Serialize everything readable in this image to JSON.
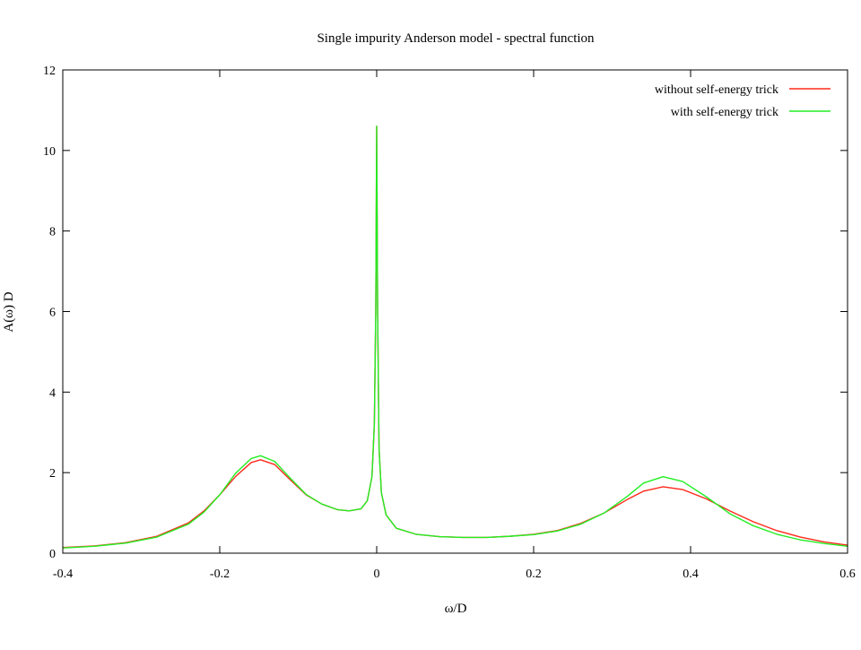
{
  "chart_data": {
    "type": "line",
    "title": "Single impurity Anderson model - spectral function",
    "xlabel": "ω/D",
    "ylabel": "A(ω) D",
    "xlim": [
      -0.4,
      0.6
    ],
    "ylim": [
      0,
      12
    ],
    "xticks": [
      -0.4,
      -0.2,
      0,
      0.2,
      0.4,
      0.6
    ],
    "xtick_labels": [
      "-0.4",
      "-0.2",
      "0",
      "0.2",
      "0.4",
      "0.6"
    ],
    "yticks": [
      0,
      2,
      4,
      6,
      8,
      10,
      12
    ],
    "ytick_labels": [
      "0",
      "2",
      "4",
      "6",
      "8",
      "10",
      "12"
    ],
    "grid": false,
    "legend_position": "top-right",
    "series": [
      {
        "name": "without self-energy trick",
        "color": "#ff2a1a",
        "points": [
          [
            -0.4,
            0.14
          ],
          [
            -0.36,
            0.18
          ],
          [
            -0.32,
            0.26
          ],
          [
            -0.28,
            0.42
          ],
          [
            -0.24,
            0.75
          ],
          [
            -0.22,
            1.05
          ],
          [
            -0.2,
            1.45
          ],
          [
            -0.18,
            1.9
          ],
          [
            -0.16,
            2.25
          ],
          [
            -0.148,
            2.32
          ],
          [
            -0.13,
            2.2
          ],
          [
            -0.11,
            1.82
          ],
          [
            -0.09,
            1.45
          ],
          [
            -0.07,
            1.22
          ],
          [
            -0.05,
            1.08
          ],
          [
            -0.035,
            1.05
          ],
          [
            -0.02,
            1.1
          ],
          [
            -0.012,
            1.3
          ],
          [
            -0.006,
            1.9
          ],
          [
            -0.003,
            3.2
          ],
          [
            -0.0012,
            6.0
          ],
          [
            0.0,
            10.6
          ],
          [
            0.0012,
            6.0
          ],
          [
            0.003,
            2.6
          ],
          [
            0.006,
            1.5
          ],
          [
            0.012,
            0.95
          ],
          [
            0.025,
            0.62
          ],
          [
            0.05,
            0.47
          ],
          [
            0.08,
            0.41
          ],
          [
            0.11,
            0.39
          ],
          [
            0.14,
            0.39
          ],
          [
            0.17,
            0.42
          ],
          [
            0.2,
            0.47
          ],
          [
            0.23,
            0.56
          ],
          [
            0.26,
            0.74
          ],
          [
            0.29,
            1.0
          ],
          [
            0.32,
            1.34
          ],
          [
            0.34,
            1.54
          ],
          [
            0.365,
            1.65
          ],
          [
            0.39,
            1.58
          ],
          [
            0.42,
            1.35
          ],
          [
            0.45,
            1.05
          ],
          [
            0.48,
            0.78
          ],
          [
            0.51,
            0.56
          ],
          [
            0.54,
            0.4
          ],
          [
            0.57,
            0.28
          ],
          [
            0.6,
            0.2
          ]
        ]
      },
      {
        "name": "with self-energy trick",
        "color": "#22ee22",
        "points": [
          [
            -0.4,
            0.13
          ],
          [
            -0.36,
            0.17
          ],
          [
            -0.32,
            0.25
          ],
          [
            -0.28,
            0.4
          ],
          [
            -0.24,
            0.72
          ],
          [
            -0.22,
            1.02
          ],
          [
            -0.2,
            1.45
          ],
          [
            -0.18,
            1.98
          ],
          [
            -0.16,
            2.35
          ],
          [
            -0.148,
            2.42
          ],
          [
            -0.13,
            2.28
          ],
          [
            -0.11,
            1.86
          ],
          [
            -0.09,
            1.46
          ],
          [
            -0.07,
            1.22
          ],
          [
            -0.05,
            1.08
          ],
          [
            -0.035,
            1.05
          ],
          [
            -0.02,
            1.1
          ],
          [
            -0.012,
            1.3
          ],
          [
            -0.006,
            1.9
          ],
          [
            -0.003,
            3.2
          ],
          [
            -0.0012,
            6.0
          ],
          [
            0.0,
            10.6
          ],
          [
            0.0012,
            6.0
          ],
          [
            0.003,
            2.6
          ],
          [
            0.006,
            1.5
          ],
          [
            0.012,
            0.95
          ],
          [
            0.025,
            0.62
          ],
          [
            0.05,
            0.47
          ],
          [
            0.08,
            0.41
          ],
          [
            0.11,
            0.39
          ],
          [
            0.14,
            0.39
          ],
          [
            0.17,
            0.42
          ],
          [
            0.2,
            0.46
          ],
          [
            0.23,
            0.55
          ],
          [
            0.26,
            0.72
          ],
          [
            0.29,
            1.0
          ],
          [
            0.32,
            1.42
          ],
          [
            0.34,
            1.74
          ],
          [
            0.365,
            1.9
          ],
          [
            0.39,
            1.78
          ],
          [
            0.42,
            1.4
          ],
          [
            0.45,
            0.98
          ],
          [
            0.48,
            0.68
          ],
          [
            0.51,
            0.47
          ],
          [
            0.54,
            0.33
          ],
          [
            0.57,
            0.24
          ],
          [
            0.6,
            0.17
          ]
        ]
      }
    ]
  }
}
